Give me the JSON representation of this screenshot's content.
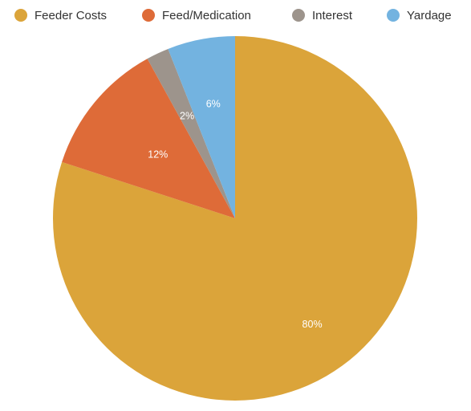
{
  "chart_data": {
    "type": "pie",
    "title": "",
    "legend_position": "top",
    "series": [
      {
        "categories": [
          "Feeder Costs",
          "Feed/Medication",
          "Interest",
          "Yardage"
        ],
        "values": [
          80,
          12,
          2,
          6
        ],
        "labels": [
          "80%",
          "12%",
          "2%",
          "6%"
        ],
        "colors": [
          "#DBA43A",
          "#DE6B38",
          "#9D948C",
          "#73B3E0"
        ]
      }
    ],
    "start_angle_deg": 0,
    "direction": "clockwise"
  }
}
